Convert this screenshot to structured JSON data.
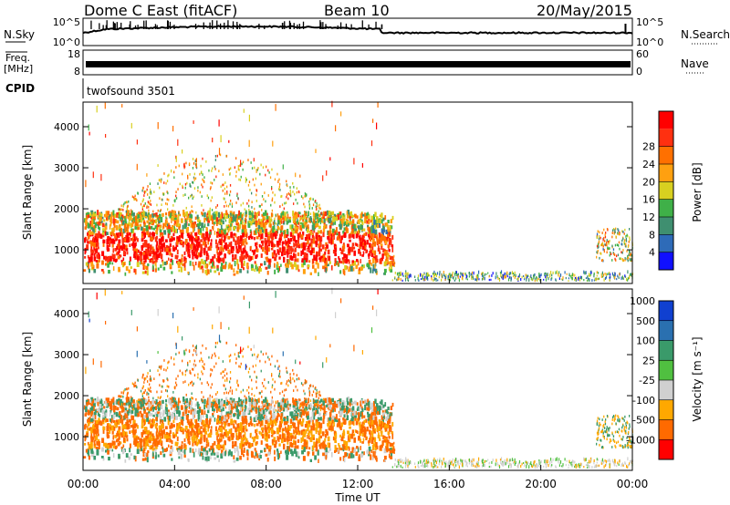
{
  "header": {
    "station": "Dome C East (fitACF)",
    "beam": "Beam 10",
    "date": "20/May/2015"
  },
  "aux": {
    "nsky_label": "N.Sky",
    "nsearch_label": "N.Search",
    "noise_ticks": [
      "10^5",
      "10^0"
    ],
    "freq_label_1": "Freq.",
    "freq_label_2": "[MHz]",
    "freq_ticks": [
      "18",
      "8"
    ],
    "nave_label": "Nave",
    "nave_ticks": [
      "60",
      "0"
    ],
    "cpid_label": "CPID",
    "cpid_value": "twofsound 3501"
  },
  "colors": {
    "power": [
      "#1010ff",
      "#2e6bb8",
      "#3f8f70",
      "#3fb048",
      "#d8d020",
      "#ffa010",
      "#ff7000",
      "#ff3010",
      "#ff0000"
    ],
    "velocity": [
      "#ff0000",
      "#ff6a00",
      "#ffa800",
      "#d0d0d0",
      "#50c040",
      "#3a9a6a",
      "#2a70b0",
      "#1040d0"
    ]
  },
  "chart_data": [
    {
      "type": "heatmap",
      "quantity": "power",
      "ylabel": "Slant Range [km]",
      "yticks": [
        1000,
        2000,
        3000,
        4000
      ],
      "ylim": [
        180,
        4600
      ],
      "xlim": [
        0,
        24
      ],
      "colorbar_label": "Power [dB]",
      "colorbar_ticks": [
        "4",
        "8",
        "12",
        "16",
        "20",
        "24",
        "28"
      ],
      "colorbar_range": [
        0,
        32
      ]
    },
    {
      "type": "heatmap",
      "quantity": "velocity",
      "ylabel": "Slant Range [km]",
      "yticks": [
        1000,
        2000,
        3000,
        4000
      ],
      "ylim": [
        180,
        4600
      ],
      "xlim": [
        0,
        24
      ],
      "xlabel": "Time UT",
      "xtick_labels": [
        "00:00",
        "04:00",
        "08:00",
        "12:00",
        "16:00",
        "20:00",
        "00:00"
      ],
      "xticks": [
        0,
        4,
        8,
        12,
        16,
        20,
        24
      ],
      "colorbar_label": "Velocity [m s⁻¹]",
      "colorbar_ticks": [
        "-1000",
        "-500",
        "-100",
        "-25",
        "25",
        "100",
        "500",
        "1000"
      ]
    }
  ]
}
